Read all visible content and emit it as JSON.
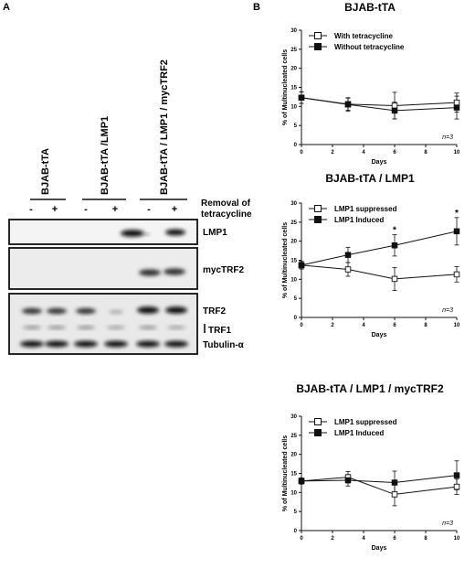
{
  "panel_a": {
    "letter": "A",
    "groups": [
      {
        "title": "BJAB-tTA",
        "signs": [
          "-",
          "+"
        ]
      },
      {
        "title": "BJAB-tTA /LMP1",
        "signs": [
          "-",
          "+"
        ]
      },
      {
        "title": "BJAB-tTA / LMP1 / mycTRF2",
        "signs": [
          "-",
          "+"
        ]
      }
    ],
    "condition_label_1": "Removal of",
    "condition_label_2": "tetracycline",
    "blots": {
      "lmp1": "LMP1",
      "myctrf2": "mycTRF2",
      "trf2": "TRF2",
      "trf1": "TRF1",
      "tubulin": "Tubulin-α"
    }
  },
  "panel_b": {
    "letter": "B"
  },
  "chart_data": [
    {
      "type": "line",
      "title": "BJAB-tTA",
      "xlabel": "Days",
      "ylabel": "% of Multinucleated cells",
      "x": [
        0,
        3,
        6,
        10
      ],
      "xticks": [
        0,
        2,
        4,
        6,
        8,
        10
      ],
      "yticks": [
        0,
        5,
        10,
        15,
        20,
        25,
        30
      ],
      "xlim": [
        0,
        10
      ],
      "ylim": [
        0,
        30
      ],
      "series": [
        {
          "name": "With tetracycline",
          "marker": "open-square",
          "values": [
            12.3,
            10.6,
            10.2,
            11.0
          ],
          "errors": [
            1.5,
            1.6,
            3.5,
            2.5
          ]
        },
        {
          "name": "Without tetracycline",
          "marker": "filled-square",
          "values": [
            12.3,
            10.5,
            8.9,
            9.7
          ],
          "errors": [
            1.5,
            1.8,
            2.2,
            3.0
          ]
        }
      ],
      "stars": [],
      "annotation": "n=3",
      "legend_position": "top-left",
      "grid": false
    },
    {
      "type": "line",
      "title": "BJAB-tTA / LMP1",
      "xlabel": "Days",
      "ylabel": "% of Multinucleated cells",
      "x": [
        0,
        3,
        6,
        10
      ],
      "xticks": [
        0,
        2,
        4,
        6,
        8,
        10
      ],
      "yticks": [
        0,
        5,
        10,
        15,
        20,
        25,
        30
      ],
      "xlim": [
        0,
        10
      ],
      "ylim": [
        0,
        30
      ],
      "series": [
        {
          "name": "LMP1 suppressed",
          "marker": "open-square",
          "values": [
            13.7,
            12.6,
            10.1,
            11.3
          ],
          "errors": [
            1.0,
            1.8,
            3.0,
            2.0
          ]
        },
        {
          "name": "LMP1 Induced",
          "marker": "filled-square",
          "values": [
            13.7,
            16.4,
            18.9,
            22.6
          ],
          "errors": [
            1.0,
            2.0,
            2.8,
            3.6
          ]
        }
      ],
      "stars": [
        6,
        10
      ],
      "annotation": "n=3",
      "legend_position": "top-left",
      "grid": false
    },
    {
      "type": "line",
      "title": "BJAB-tTA / LMP1 / mycTRF2",
      "xlabel": "Days",
      "ylabel": "% of Multinucleated cells",
      "x": [
        0,
        3,
        6,
        10
      ],
      "xticks": [
        0,
        2,
        4,
        6,
        8,
        10
      ],
      "yticks": [
        0,
        5,
        10,
        15,
        20,
        25,
        30
      ],
      "xlim": [
        0,
        10
      ],
      "ylim": [
        0,
        30
      ],
      "series": [
        {
          "name": "LMP1 suppressed",
          "marker": "open-square",
          "values": [
            13.0,
            14.0,
            9.5,
            11.5
          ],
          "errors": [
            0.8,
            1.5,
            3.0,
            2.0
          ]
        },
        {
          "name": "LMP1 Induced",
          "marker": "filled-square",
          "values": [
            13.0,
            13.2,
            12.6,
            14.5
          ],
          "errors": [
            0.8,
            1.5,
            3.0,
            3.8
          ]
        }
      ],
      "stars": [],
      "annotation": "n=3",
      "legend_position": "top-left",
      "grid": false
    }
  ]
}
